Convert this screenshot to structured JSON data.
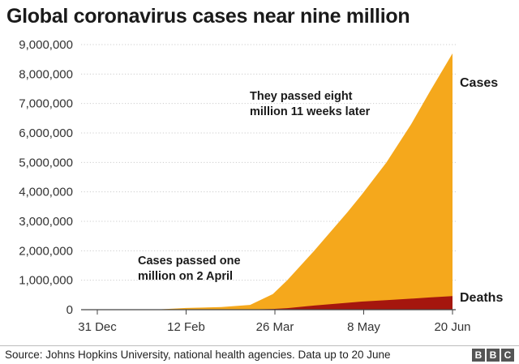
{
  "chart_data": {
    "type": "area",
    "title": "Global coronavirus cases near nine million",
    "xlabel": "",
    "ylabel": "",
    "x_ticks": [
      "31 Dec",
      "12 Feb",
      "26 Mar",
      "8 May",
      "20 Jun"
    ],
    "y_ticks": [
      "0",
      "1,000,000",
      "2,000,000",
      "3,000,000",
      "4,000,000",
      "5,000,000",
      "6,000,000",
      "7,000,000",
      "8,000,000",
      "9,000,000"
    ],
    "ylim": [
      0,
      9000000
    ],
    "x_range_days": [
      0,
      172
    ],
    "grid": "horizontal",
    "x_dates": [
      "31 Dec",
      "15 Jan",
      "30 Jan",
      "12 Feb",
      "1 Mar",
      "15 Mar",
      "26 Mar",
      "2 Apr",
      "15 Apr",
      "1 May",
      "8 May",
      "20 May",
      "1 Jun",
      "10 Jun",
      "20 Jun"
    ],
    "x_days": [
      0,
      15,
      30,
      43,
      60,
      74,
      85,
      92,
      105,
      121,
      128,
      140,
      152,
      161,
      172
    ],
    "series": [
      {
        "name": "Cases",
        "color": "#f5a81c",
        "values": [
          0,
          200,
          10000,
          60000,
          88000,
          160000,
          530000,
          1000000,
          2000000,
          3300000,
          3900000,
          5000000,
          6300000,
          7400000,
          8700000
        ]
      },
      {
        "name": "Deaths",
        "color": "#a5160e",
        "values": [
          0,
          0,
          200,
          1400,
          3000,
          6000,
          24000,
          53000,
          140000,
          235000,
          275000,
          325000,
          375000,
          415000,
          460000
        ]
      }
    ],
    "annotations": [
      {
        "line1": "Cases passed one",
        "line2": "million on 2 April"
      },
      {
        "line1": "They passed eight",
        "line2": "million 11 weeks later"
      }
    ]
  },
  "footer": {
    "source": "Source: Johns Hopkins University, national health agencies. Data up to 20 June",
    "logo": [
      "B",
      "B",
      "C"
    ]
  }
}
